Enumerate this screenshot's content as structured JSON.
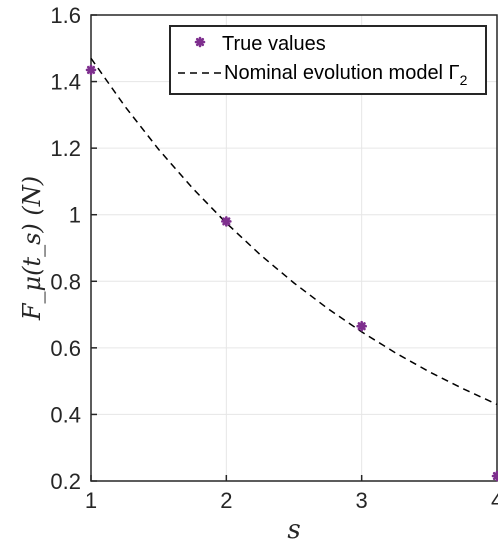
{
  "chart_data": {
    "type": "scatter",
    "xlabel": "s",
    "ylabel": "F_μ(t_s) (N)",
    "xlim": [
      1,
      4
    ],
    "ylim": [
      0.2,
      1.6
    ],
    "x_ticks": [
      "1",
      "2",
      "3",
      "4"
    ],
    "y_ticks": [
      "0.2",
      "0.4",
      "0.6",
      "0.8",
      "1",
      "1.2",
      "1.4",
      "1.6"
    ],
    "grid": true,
    "legend_position": "top-right",
    "series": [
      {
        "name": "True values",
        "type": "scatter",
        "color": "#7E2F8E",
        "marker": "asterisk",
        "x": [
          1,
          2,
          3,
          4
        ],
        "y": [
          1.435,
          0.98,
          0.665,
          0.215
        ]
      },
      {
        "name": "Nominal evolution model Γ",
        "name_subscript": "2",
        "type": "line",
        "style": "dashed",
        "color": "#000000",
        "x": [
          1,
          1.25,
          1.5,
          1.75,
          2,
          2.25,
          2.5,
          2.75,
          3,
          3.25,
          3.5,
          3.75,
          4
        ],
        "y": [
          1.47,
          1.326,
          1.196,
          1.08,
          0.975,
          0.88,
          0.795,
          0.718,
          0.648,
          0.585,
          0.528,
          0.477,
          0.43
        ]
      }
    ]
  }
}
